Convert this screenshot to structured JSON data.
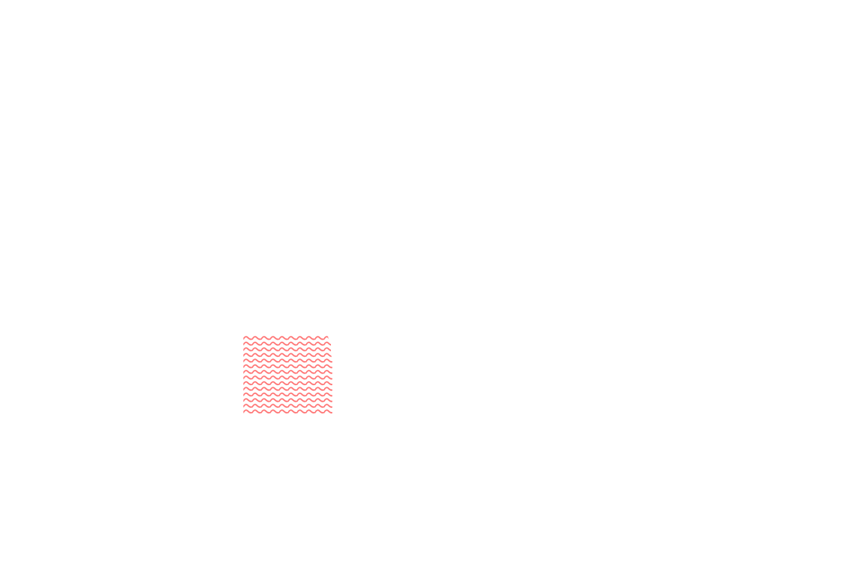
{
  "canvas": {
    "background": "#ffffff"
  },
  "pattern_swatch": {
    "pattern": "wave",
    "color": "#ff7070"
  }
}
